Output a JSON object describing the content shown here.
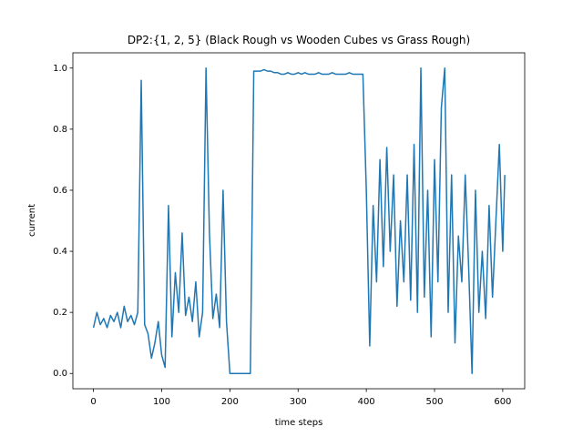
{
  "chart_data": {
    "type": "line",
    "title": "DP2:{1, 2, 5} (Black Rough vs Wooden Cubes vs Grass Rough)",
    "xlabel": "time steps",
    "ylabel": "current",
    "x": [
      0,
      5,
      10,
      15,
      20,
      25,
      30,
      35,
      40,
      45,
      50,
      55,
      60,
      65,
      70,
      75,
      80,
      85,
      90,
      95,
      100,
      105,
      110,
      115,
      120,
      125,
      130,
      135,
      140,
      145,
      150,
      155,
      160,
      165,
      170,
      175,
      180,
      185,
      190,
      195,
      200,
      205,
      210,
      215,
      220,
      225,
      230,
      235,
      240,
      245,
      250,
      255,
      260,
      265,
      270,
      275,
      280,
      285,
      290,
      295,
      300,
      305,
      310,
      315,
      320,
      325,
      330,
      335,
      340,
      345,
      350,
      355,
      360,
      365,
      370,
      375,
      380,
      385,
      390,
      395,
      400,
      405,
      410,
      415,
      420,
      425,
      430,
      435,
      440,
      445,
      450,
      455,
      460,
      465,
      470,
      475,
      480,
      485,
      490,
      495,
      500,
      505,
      510,
      515,
      520,
      525,
      530,
      535,
      540,
      545,
      550,
      555,
      560,
      565,
      570,
      575,
      580,
      585,
      590,
      595,
      600,
      603
    ],
    "series": [
      {
        "name": "current",
        "color": "#1f77b4",
        "values": [
          0.15,
          0.2,
          0.16,
          0.18,
          0.15,
          0.19,
          0.17,
          0.2,
          0.15,
          0.22,
          0.17,
          0.19,
          0.16,
          0.2,
          0.96,
          0.16,
          0.13,
          0.05,
          0.1,
          0.17,
          0.06,
          0.02,
          0.55,
          0.12,
          0.33,
          0.2,
          0.46,
          0.19,
          0.25,
          0.17,
          0.3,
          0.12,
          0.2,
          1.0,
          0.46,
          0.18,
          0.26,
          0.15,
          0.6,
          0.17,
          0.0,
          0.0,
          0.0,
          0.0,
          0.0,
          0.0,
          0.0,
          0.99,
          0.99,
          0.99,
          0.995,
          0.99,
          0.99,
          0.985,
          0.985,
          0.98,
          0.98,
          0.985,
          0.98,
          0.98,
          0.985,
          0.98,
          0.985,
          0.98,
          0.98,
          0.98,
          0.985,
          0.98,
          0.98,
          0.98,
          0.985,
          0.98,
          0.98,
          0.98,
          0.98,
          0.985,
          0.98,
          0.98,
          0.98,
          0.98,
          0.6,
          0.09,
          0.55,
          0.3,
          0.7,
          0.35,
          0.74,
          0.4,
          0.65,
          0.22,
          0.5,
          0.3,
          0.65,
          0.24,
          0.75,
          0.2,
          1.0,
          0.25,
          0.6,
          0.12,
          0.7,
          0.3,
          0.87,
          1.0,
          0.2,
          0.65,
          0.1,
          0.45,
          0.3,
          0.65,
          0.35,
          0.0,
          0.6,
          0.2,
          0.4,
          0.18,
          0.55,
          0.25,
          0.5,
          0.75,
          0.4,
          0.65
        ]
      }
    ],
    "xlim": [
      -30.2,
      632.2
    ],
    "ylim": [
      -0.05,
      1.05
    ],
    "xticks": [
      0,
      100,
      200,
      300,
      400,
      500,
      600
    ],
    "yticks": [
      {
        "value": 0,
        "label": "0.0"
      },
      {
        "value": 0.2,
        "label": "0.2"
      },
      {
        "value": 0.4,
        "label": "0.4"
      },
      {
        "value": 0.6,
        "label": "0.6"
      },
      {
        "value": 0.8,
        "label": "0.8"
      },
      {
        "value": 1.0,
        "label": "1.0"
      }
    ]
  }
}
